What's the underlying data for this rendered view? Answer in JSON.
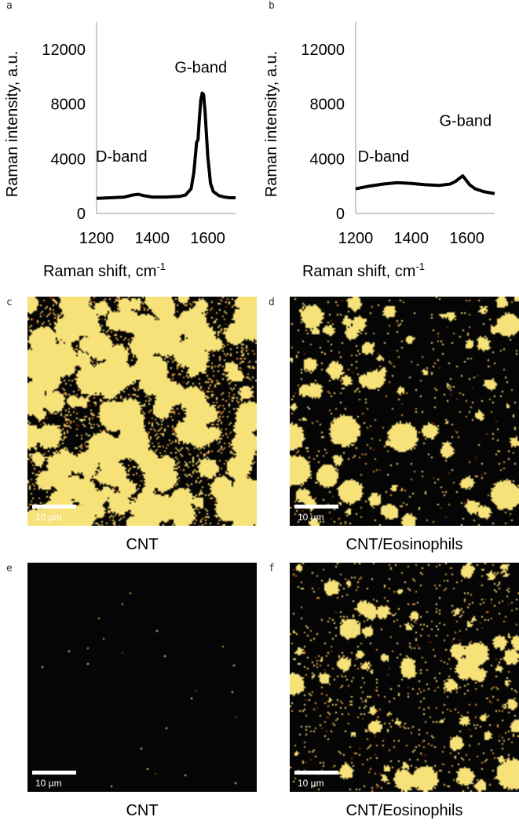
{
  "panels": {
    "a": "a",
    "b": "b",
    "c": "c",
    "d": "d",
    "e": "e",
    "f": "f"
  },
  "chart_data": [
    {
      "type": "line",
      "panel": "a",
      "ylabel": "Raman intensity, a.u.",
      "xlabel": "Raman shift, cm",
      "xlabel_sup": "-1",
      "xlim": [
        1200,
        1700
      ],
      "ylim": [
        0,
        14000
      ],
      "xticks": [
        1200,
        1400,
        1600
      ],
      "yticks": [
        0,
        4000,
        8000,
        12000
      ],
      "annotations": [
        {
          "text": "D-band",
          "x": 1290,
          "y": 3800
        },
        {
          "text": "G-band",
          "x": 1575,
          "y": 10300
        }
      ],
      "series": [
        {
          "x": [
            1200,
            1250,
            1300,
            1330,
            1350,
            1370,
            1400,
            1450,
            1500,
            1520,
            1540,
            1550,
            1560,
            1565,
            1570,
            1575,
            1580,
            1585,
            1590,
            1600,
            1610,
            1620,
            1640,
            1660,
            1680,
            1700
          ],
          "y": [
            1100,
            1150,
            1200,
            1350,
            1400,
            1300,
            1200,
            1200,
            1250,
            1350,
            1800,
            3000,
            5200,
            5400,
            7000,
            8300,
            8800,
            8700,
            7500,
            4200,
            2200,
            1600,
            1300,
            1200,
            1150,
            1150
          ]
        }
      ]
    },
    {
      "type": "line",
      "panel": "b",
      "ylabel": "Raman intensity, a.u.",
      "xlabel": "Raman shift, cm",
      "xlabel_sup": "-1",
      "xlim": [
        1200,
        1700
      ],
      "ylim": [
        0,
        14000
      ],
      "xticks": [
        1200,
        1400,
        1600
      ],
      "yticks": [
        0,
        4000,
        8000,
        12000
      ],
      "annotations": [
        {
          "text": "D-band",
          "x": 1300,
          "y": 3800
        },
        {
          "text": "G-band",
          "x": 1595,
          "y": 6400
        }
      ],
      "series": [
        {
          "x": [
            1200,
            1250,
            1300,
            1350,
            1400,
            1450,
            1500,
            1540,
            1560,
            1575,
            1585,
            1595,
            1610,
            1630,
            1660,
            1700
          ],
          "y": [
            1800,
            2000,
            2150,
            2250,
            2200,
            2100,
            2050,
            2150,
            2350,
            2600,
            2750,
            2500,
            2100,
            1800,
            1600,
            1450
          ]
        }
      ]
    }
  ],
  "maps": [
    {
      "panel": "c",
      "caption": "CNT",
      "scale": "10 µm",
      "density": 0.52,
      "mode": "blobs"
    },
    {
      "panel": "d",
      "caption": "CNT/Eosinophils",
      "scale": "10 µm",
      "density": 0.1,
      "mode": "sparse"
    },
    {
      "panel": "e",
      "caption": "CNT",
      "scale": "10 µm",
      "density": 0.004,
      "mode": "dark"
    },
    {
      "panel": "f",
      "caption": "CNT/Eosinophils",
      "scale": "10 µm",
      "density": 0.16,
      "mode": "sparse"
    }
  ],
  "colors": {
    "map_background": "#050505",
    "map_bright": "#f7e27a",
    "map_mid": "#e8a23a",
    "map_dark": "#8a2a10"
  }
}
